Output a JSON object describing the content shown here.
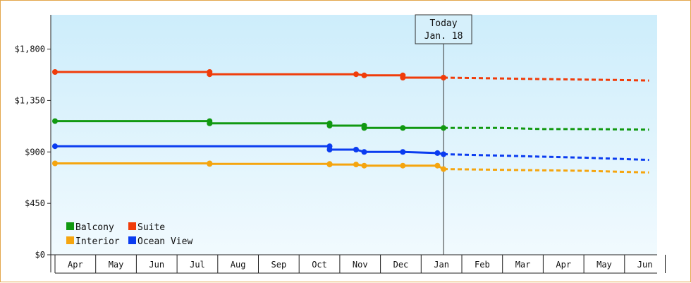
{
  "chart_data": {
    "type": "line",
    "title": "",
    "xlabel": "",
    "ylabel": "",
    "ylim": [
      0,
      2100
    ],
    "y_ticks": [
      0,
      450,
      900,
      1350,
      1800
    ],
    "y_tick_labels": [
      "$0",
      "$450",
      "$900",
      "$1,350",
      "$1,800"
    ],
    "x_months": [
      "Apr",
      "May",
      "Jun",
      "Jul",
      "Aug",
      "Sep",
      "Oct",
      "Nov",
      "Dec",
      "Jan",
      "Feb",
      "Mar",
      "Apr",
      "May",
      "Jun"
    ],
    "today": {
      "line1": "Today",
      "line2": "Jan. 18",
      "month_pos": 9.55
    },
    "legend_position": "bottom-left",
    "grid": false,
    "series": [
      {
        "name": "Balcony",
        "color": "#119911",
        "actual": [
          [
            0,
            1170
          ],
          [
            3.8,
            1170
          ],
          [
            3.8,
            1150
          ],
          [
            6.75,
            1150
          ],
          [
            6.75,
            1130
          ],
          [
            7.6,
            1130
          ],
          [
            7.6,
            1110
          ],
          [
            8.55,
            1110
          ],
          [
            9.55,
            1110
          ]
        ],
        "forecast": [
          [
            9.55,
            1110
          ],
          [
            11.0,
            1110
          ],
          [
            12.0,
            1100
          ],
          [
            13.1,
            1100
          ],
          [
            14.6,
            1095
          ]
        ]
      },
      {
        "name": "Suite",
        "color": "#f03c0a",
        "actual": [
          [
            0,
            1600
          ],
          [
            3.8,
            1600
          ],
          [
            3.8,
            1580
          ],
          [
            7.4,
            1580
          ],
          [
            7.6,
            1570
          ],
          [
            8.55,
            1570
          ],
          [
            8.55,
            1550
          ],
          [
            9.55,
            1550
          ]
        ],
        "forecast": [
          [
            9.55,
            1550
          ],
          [
            10.7,
            1545
          ],
          [
            11.5,
            1540
          ],
          [
            12.6,
            1535
          ],
          [
            13.8,
            1530
          ],
          [
            14.6,
            1525
          ]
        ]
      },
      {
        "name": "Interior",
        "color": "#f5a50f",
        "actual": [
          [
            0,
            800
          ],
          [
            3.8,
            800
          ],
          [
            3.8,
            795
          ],
          [
            6.75,
            795
          ],
          [
            6.75,
            790
          ],
          [
            7.4,
            790
          ],
          [
            7.6,
            780
          ],
          [
            8.55,
            780
          ],
          [
            9.4,
            780
          ],
          [
            9.55,
            750
          ]
        ],
        "forecast": [
          [
            9.55,
            750
          ],
          [
            10.7,
            745
          ],
          [
            11.8,
            740
          ],
          [
            13.0,
            735
          ],
          [
            14.6,
            720
          ]
        ]
      },
      {
        "name": "Ocean View",
        "color": "#0b3cf0",
        "actual": [
          [
            0,
            950
          ],
          [
            6.75,
            950
          ],
          [
            6.75,
            920
          ],
          [
            7.4,
            920
          ],
          [
            7.6,
            900
          ],
          [
            8.55,
            900
          ],
          [
            9.4,
            890
          ],
          [
            9.55,
            880
          ]
        ],
        "forecast": [
          [
            9.55,
            880
          ],
          [
            10.7,
            870
          ],
          [
            11.8,
            860
          ],
          [
            13.0,
            850
          ],
          [
            14.6,
            830
          ]
        ]
      }
    ]
  }
}
